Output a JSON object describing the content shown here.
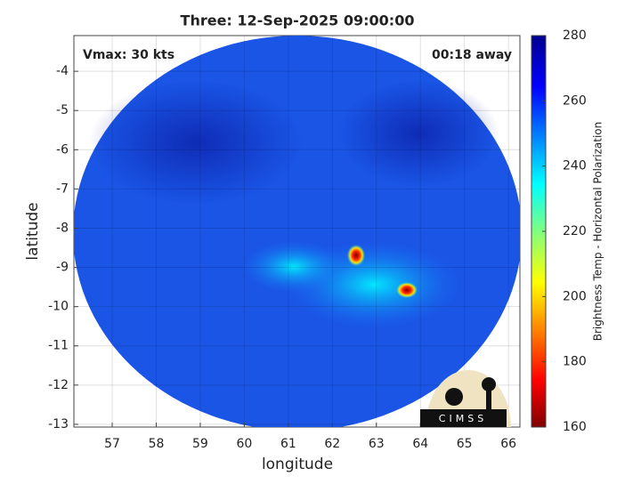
{
  "chart_data": {
    "type": "image",
    "title": "Three: 12-Sep-2025 09:00:00",
    "xlabel": "longitude",
    "ylabel": "latitude",
    "xlim": [
      56.13,
      66.26
    ],
    "ylim": [
      -13.07,
      -3.09
    ],
    "xticks": [
      57,
      58,
      59,
      60,
      61,
      62,
      63,
      64,
      65,
      66
    ],
    "yticks": [
      -4,
      -5,
      -6,
      -7,
      -8,
      -9,
      -10,
      -11,
      -12,
      -13
    ],
    "grid": true,
    "annotations": [
      "Vmax: 30 kts",
      "00:18 away"
    ],
    "colorbar": {
      "label": "Brightness Temp - Horizontal Polarization",
      "lim": [
        160,
        280
      ],
      "ticks": [
        160,
        180,
        200,
        220,
        240,
        260,
        280
      ]
    },
    "logo_text": "CIMSS"
  }
}
